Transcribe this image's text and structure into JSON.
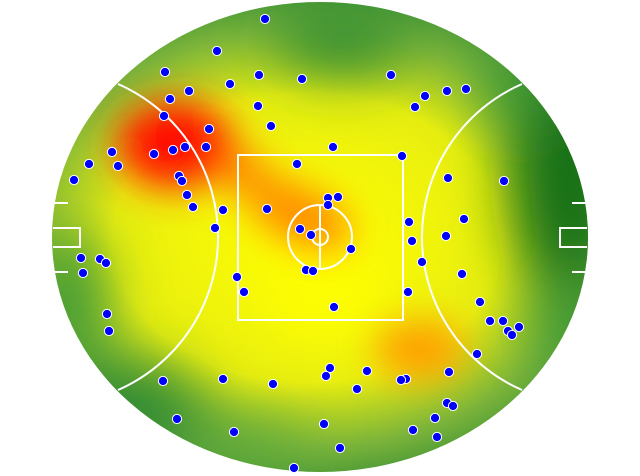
{
  "chart_data": {
    "type": "scatter",
    "background": "heatmap",
    "field": "oval",
    "title": "",
    "xlabel": "",
    "ylabel": "",
    "xlim": [
      -270,
      270
    ],
    "ylim": [
      -237,
      237
    ],
    "grid": false,
    "legend": "none",
    "colors": {
      "point_fill": "#0000ff",
      "point_stroke": "#ffffff",
      "lines": "#ffffff",
      "heat_low": "#1a7a1a",
      "heat_mid": "#ffff00",
      "heat_high": "#ff0000"
    },
    "hotspots": [
      {
        "x": -150,
        "y": 85,
        "intensity": 1.0
      },
      {
        "x": -70,
        "y": 55,
        "intensity": 0.75
      },
      {
        "x": -20,
        "y": 20,
        "intensity": 0.7
      },
      {
        "x": 100,
        "y": -115,
        "intensity": 0.65
      }
    ],
    "points": [
      [
        -55,
        218
      ],
      [
        -103,
        186
      ],
      [
        -155,
        165
      ],
      [
        -61,
        162
      ],
      [
        -18,
        158
      ],
      [
        71,
        162
      ],
      [
        -90,
        153
      ],
      [
        -131,
        146
      ],
      [
        -150,
        138
      ],
      [
        105,
        141
      ],
      [
        127,
        146
      ],
      [
        146,
        148
      ],
      [
        95,
        130
      ],
      [
        -62,
        131
      ],
      [
        -156,
        121
      ],
      [
        -49,
        111
      ],
      [
        -111,
        108
      ],
      [
        -135,
        90
      ],
      [
        -114,
        90
      ],
      [
        -147,
        87
      ],
      [
        -166,
        83
      ],
      [
        -208,
        85
      ],
      [
        -231,
        73
      ],
      [
        -202,
        71
      ],
      [
        -246,
        57
      ],
      [
        -141,
        61
      ],
      [
        -138,
        56
      ],
      [
        -133,
        42
      ],
      [
        -127,
        30
      ],
      [
        -97,
        27
      ],
      [
        -53,
        28
      ],
      [
        -105,
        9
      ],
      [
        -23,
        73
      ],
      [
        13,
        90
      ],
      [
        82,
        81
      ],
      [
        128,
        59
      ],
      [
        184,
        56
      ],
      [
        8,
        39
      ],
      [
        18,
        40
      ],
      [
        8,
        32
      ],
      [
        -20,
        8
      ],
      [
        -9,
        2
      ],
      [
        31,
        -12
      ],
      [
        89,
        15
      ],
      [
        144,
        18
      ],
      [
        92,
        -4
      ],
      [
        126,
        1
      ],
      [
        102,
        -25
      ],
      [
        142,
        -37
      ],
      [
        -14,
        -33
      ],
      [
        -7,
        -34
      ],
      [
        -239,
        -21
      ],
      [
        -220,
        -22
      ],
      [
        -214,
        -26
      ],
      [
        -237,
        -36
      ],
      [
        -83,
        -40
      ],
      [
        -76,
        -55
      ],
      [
        88,
        -55
      ],
      [
        14,
        -70
      ],
      [
        160,
        -65
      ],
      [
        -213,
        -77
      ],
      [
        -211,
        -94
      ],
      [
        170,
        -84
      ],
      [
        183,
        -84
      ],
      [
        199,
        -90
      ],
      [
        188,
        -94
      ],
      [
        192,
        -98
      ],
      [
        157,
        -117
      ],
      [
        10,
        -131
      ],
      [
        6,
        -139
      ],
      [
        47,
        -134
      ],
      [
        86,
        -142
      ],
      [
        81,
        -143
      ],
      [
        129,
        -135
      ],
      [
        -157,
        -144
      ],
      [
        -97,
        -142
      ],
      [
        -47,
        -147
      ],
      [
        37,
        -152
      ],
      [
        127,
        -166
      ],
      [
        133,
        -169
      ],
      [
        115,
        -181
      ],
      [
        -143,
        -182
      ],
      [
        -86,
        -195
      ],
      [
        4,
        -187
      ],
      [
        93,
        -193
      ],
      [
        117,
        -200
      ],
      [
        20,
        -211
      ],
      [
        -26,
        -231
      ]
    ]
  }
}
